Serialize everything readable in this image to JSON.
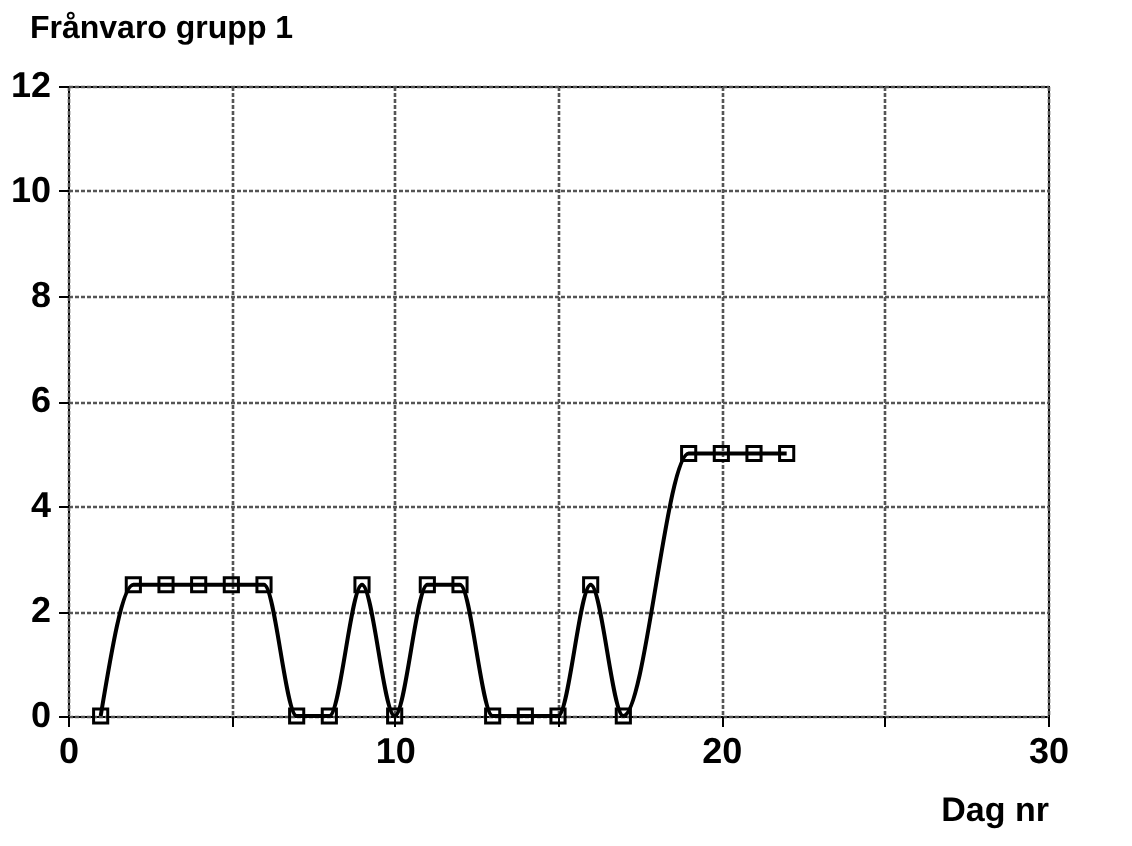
{
  "chart_data": {
    "type": "line",
    "title": "Frånvaro grupp 1",
    "xlabel": "Dag nr",
    "x": [
      1,
      2,
      3,
      4,
      5,
      6,
      7,
      8,
      9,
      10,
      11,
      12,
      13,
      14,
      15,
      16,
      17,
      19,
      20,
      21,
      22
    ],
    "series": [
      {
        "color": "#000000",
        "values": [
          0,
          2.5,
          2.5,
          2.5,
          2.5,
          2.5,
          0,
          0,
          2.5,
          0,
          2.5,
          2.5,
          0,
          0,
          0,
          2.5,
          0,
          5,
          5,
          5,
          5
        ]
      }
    ],
    "xlim": [
      0,
      30
    ],
    "xticks": [
      0,
      {
        "value": 5,
        "label": null
      },
      10,
      {
        "value": 15,
        "label": null
      },
      20,
      {
        "value": 25,
        "label": null
      },
      30
    ],
    "ylim": [
      0,
      12
    ],
    "yticks": [
      0,
      2,
      4,
      6,
      8,
      10,
      12
    ],
    "grid": true,
    "marker": "square",
    "line_style": "solid"
  }
}
